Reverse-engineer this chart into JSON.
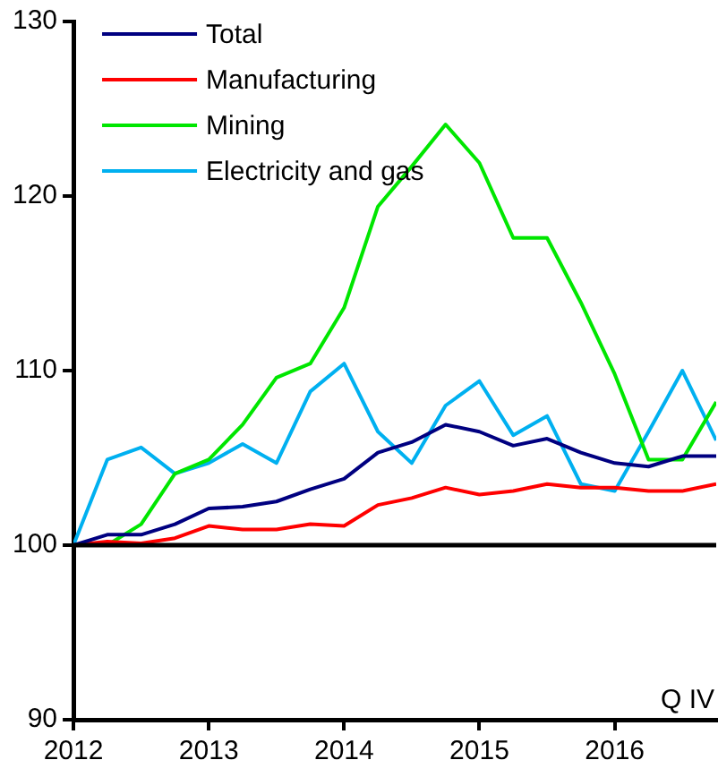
{
  "chart_data": {
    "type": "line",
    "x": [
      2012,
      2012.25,
      2012.5,
      2012.75,
      2013,
      2013.25,
      2013.5,
      2013.75,
      2014,
      2014.25,
      2014.5,
      2014.75,
      2015,
      2015.25,
      2015.5,
      2015.75,
      2016,
      2016.25,
      2016.5,
      2016.75
    ],
    "series": [
      {
        "name": "Total",
        "color": "#000080",
        "values": [
          100,
          100.6,
          100.6,
          101.2,
          102.1,
          102.2,
          102.5,
          103.2,
          103.8,
          105.3,
          105.9,
          106.9,
          106.5,
          105.7,
          106.1,
          105.3,
          104.7,
          104.5,
          105.1,
          105.1
        ]
      },
      {
        "name": "Manufacturing",
        "color": "#ff0000",
        "values": [
          100,
          100.2,
          100.1,
          100.4,
          101.1,
          100.9,
          100.9,
          101.2,
          101.1,
          102.3,
          102.7,
          103.3,
          102.9,
          103.1,
          103.5,
          103.3,
          103.3,
          103.1,
          103.1,
          103.5
        ]
      },
      {
        "name": "Mining",
        "color": "#00e600",
        "values": [
          100,
          100,
          101.2,
          104.1,
          104.9,
          106.9,
          109.6,
          110.4,
          113.6,
          119.4,
          121.7,
          124.1,
          121.9,
          117.6,
          117.6,
          113.9,
          109.8,
          104.9,
          104.9,
          108.2
        ]
      },
      {
        "name": "Electricity and gas",
        "color": "#00b0f0",
        "values": [
          100,
          104.9,
          105.6,
          104.1,
          104.7,
          105.8,
          104.7,
          108.8,
          110.4,
          106.5,
          104.7,
          108,
          109.4,
          106.3,
          107.4,
          103.5,
          103.1,
          106.5,
          110,
          106
        ]
      }
    ],
    "xlim": [
      2012,
      2016.75
    ],
    "xticks": [
      2012,
      2013,
      2014,
      2015,
      2016
    ],
    "ylim": [
      90,
      130
    ],
    "yticks": [
      90,
      100,
      110,
      120,
      130
    ],
    "ref_lines": [
      {
        "axis": "y",
        "value": 100,
        "color": "#000000"
      }
    ],
    "annotations": [
      "Q IV"
    ],
    "grid": false,
    "legend": "top left",
    "marker": "none",
    "line_style": "solid"
  }
}
